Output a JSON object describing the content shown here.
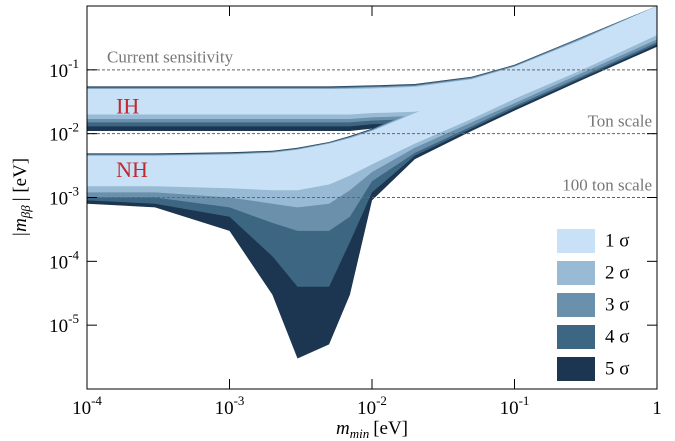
{
  "chart_data": {
    "type": "region",
    "xscale": "log",
    "yscale": "log",
    "xlim": [
      0.0001,
      1
    ],
    "ylim": [
      1e-06,
      1
    ],
    "xticks": [
      {
        "value": 0.0001,
        "label": "10",
        "exponent": "-4"
      },
      {
        "value": 0.001,
        "label": "10",
        "exponent": "-3"
      },
      {
        "value": 0.01,
        "label": "10",
        "exponent": "-2"
      },
      {
        "value": 0.1,
        "label": "10",
        "exponent": "-1"
      },
      {
        "value": 1,
        "label": "1"
      }
    ],
    "yticks": [
      {
        "value": 0.1,
        "label": "10",
        "exponent": "-1"
      },
      {
        "value": 0.01,
        "label": "10",
        "exponent": "-2"
      },
      {
        "value": 0.001,
        "label": "10",
        "exponent": "-3"
      },
      {
        "value": 0.0001,
        "label": "10",
        "exponent": "-4"
      },
      {
        "value": 1e-05,
        "label": "10",
        "exponent": "-5"
      }
    ],
    "xlabel": {
      "symbol": "m",
      "subscript": "min",
      "unit": "[eV]"
    },
    "ylabel": {
      "symbol": "|m",
      "subscript": "ββ",
      "unit": "| [eV]"
    },
    "reference_lines": [
      {
        "value": 0.1,
        "label": "Current sensitivity",
        "side": "left"
      },
      {
        "value": 0.01,
        "label": "Ton scale",
        "side": "right"
      },
      {
        "value": 0.001,
        "label": "100 ton scale",
        "side": "right"
      }
    ],
    "annotations": [
      {
        "text": "IH",
        "x": 0.00016,
        "y": 0.025
      },
      {
        "text": "NH",
        "x": 0.00016,
        "y": 0.0025
      }
    ],
    "legend": "lower right",
    "x": [
      0.0001,
      0.0003,
      0.001,
      0.002,
      0.003,
      0.005,
      0.007,
      0.01,
      0.02,
      0.05,
      0.1,
      0.3,
      1
    ],
    "series": [
      {
        "name": "1 σ",
        "color": "#c8e1f6",
        "ih_upper": [
          0.05,
          0.05,
          0.05,
          0.05,
          0.05,
          0.05,
          0.05,
          0.051,
          0.054,
          0.071,
          0.112,
          0.3,
          1.0
        ],
        "ih_lower": [
          0.02,
          0.02,
          0.02,
          0.02,
          0.02,
          0.02,
          0.02,
          0.021,
          0.022,
          0.029,
          0.045,
          0.12,
          0.4
        ],
        "nh_upper": [
          0.0045,
          0.0045,
          0.0047,
          0.005,
          0.0056,
          0.007,
          0.0085,
          0.011,
          0.021,
          0.05,
          0.1,
          0.3,
          1.0
        ],
        "nh_lower": [
          0.0015,
          0.0015,
          0.0014,
          0.0013,
          0.0013,
          0.0016,
          0.0022,
          0.0033,
          0.007,
          0.017,
          0.035,
          0.1,
          0.35
        ]
      },
      {
        "name": "2 σ",
        "color": "#99bad4",
        "ih_upper": [
          0.051,
          0.051,
          0.051,
          0.051,
          0.051,
          0.051,
          0.052,
          0.053,
          0.056,
          0.073,
          0.114,
          0.31,
          1.0
        ],
        "ih_lower": [
          0.017,
          0.017,
          0.017,
          0.017,
          0.017,
          0.017,
          0.017,
          0.018,
          0.019,
          0.025,
          0.038,
          0.1,
          0.34
        ],
        "nh_upper": [
          0.0046,
          0.0046,
          0.0048,
          0.0051,
          0.0057,
          0.0071,
          0.0087,
          0.0113,
          0.022,
          0.052,
          0.103,
          0.31,
          1.0
        ],
        "nh_lower": [
          0.0012,
          0.0012,
          0.001,
          0.0008,
          0.0007,
          0.0008,
          0.0013,
          0.0025,
          0.006,
          0.015,
          0.03,
          0.09,
          0.3
        ]
      },
      {
        "name": "3 σ",
        "color": "#6a90ab",
        "ih_upper": [
          0.052,
          0.052,
          0.052,
          0.052,
          0.052,
          0.052,
          0.053,
          0.054,
          0.057,
          0.075,
          0.116,
          0.32,
          1.0
        ],
        "ih_lower": [
          0.015,
          0.015,
          0.015,
          0.015,
          0.015,
          0.015,
          0.015,
          0.016,
          0.017,
          0.022,
          0.034,
          0.09,
          0.3
        ],
        "nh_upper": [
          0.0047,
          0.0047,
          0.0049,
          0.0052,
          0.0058,
          0.0072,
          0.0089,
          0.0116,
          0.023,
          0.054,
          0.106,
          0.32,
          1.0
        ],
        "nh_lower": [
          0.001,
          0.001,
          0.0007,
          0.0004,
          0.0003,
          0.0003,
          0.0005,
          0.0018,
          0.005,
          0.013,
          0.027,
          0.08,
          0.27
        ]
      },
      {
        "name": "4 σ",
        "color": "#3d6682",
        "ih_upper": [
          0.054,
          0.054,
          0.054,
          0.054,
          0.054,
          0.054,
          0.055,
          0.056,
          0.059,
          0.077,
          0.118,
          0.33,
          1.0
        ],
        "ih_lower": [
          0.013,
          0.013,
          0.013,
          0.013,
          0.013,
          0.013,
          0.013,
          0.014,
          0.015,
          0.02,
          0.031,
          0.085,
          0.28
        ],
        "nh_upper": [
          0.0048,
          0.0048,
          0.005,
          0.0053,
          0.0059,
          0.0073,
          0.009,
          0.0118,
          0.024,
          0.056,
          0.108,
          0.33,
          1.0
        ],
        "nh_lower": [
          0.0009,
          0.0008,
          0.0005,
          0.00012,
          4e-05,
          4e-05,
          0.0002,
          0.0012,
          0.0045,
          0.012,
          0.025,
          0.075,
          0.25
        ]
      },
      {
        "name": "5 σ",
        "color": "#1c3550",
        "ih_upper": [
          0.055,
          0.055,
          0.055,
          0.055,
          0.055,
          0.055,
          0.056,
          0.057,
          0.06,
          0.078,
          0.12,
          0.33,
          1.0
        ],
        "ih_lower": [
          0.011,
          0.011,
          0.011,
          0.011,
          0.011,
          0.011,
          0.011,
          0.012,
          0.013,
          0.018,
          0.028,
          0.08,
          0.26
        ],
        "nh_upper": [
          0.0049,
          0.0049,
          0.0051,
          0.0054,
          0.006,
          0.0074,
          0.0092,
          0.012,
          0.025,
          0.058,
          0.11,
          0.33,
          1.0
        ],
        "nh_lower": [
          0.0008,
          0.0007,
          0.0003,
          3e-05,
          3e-06,
          5e-06,
          3e-05,
          0.0009,
          0.004,
          0.011,
          0.023,
          0.07,
          0.23
        ]
      }
    ]
  }
}
